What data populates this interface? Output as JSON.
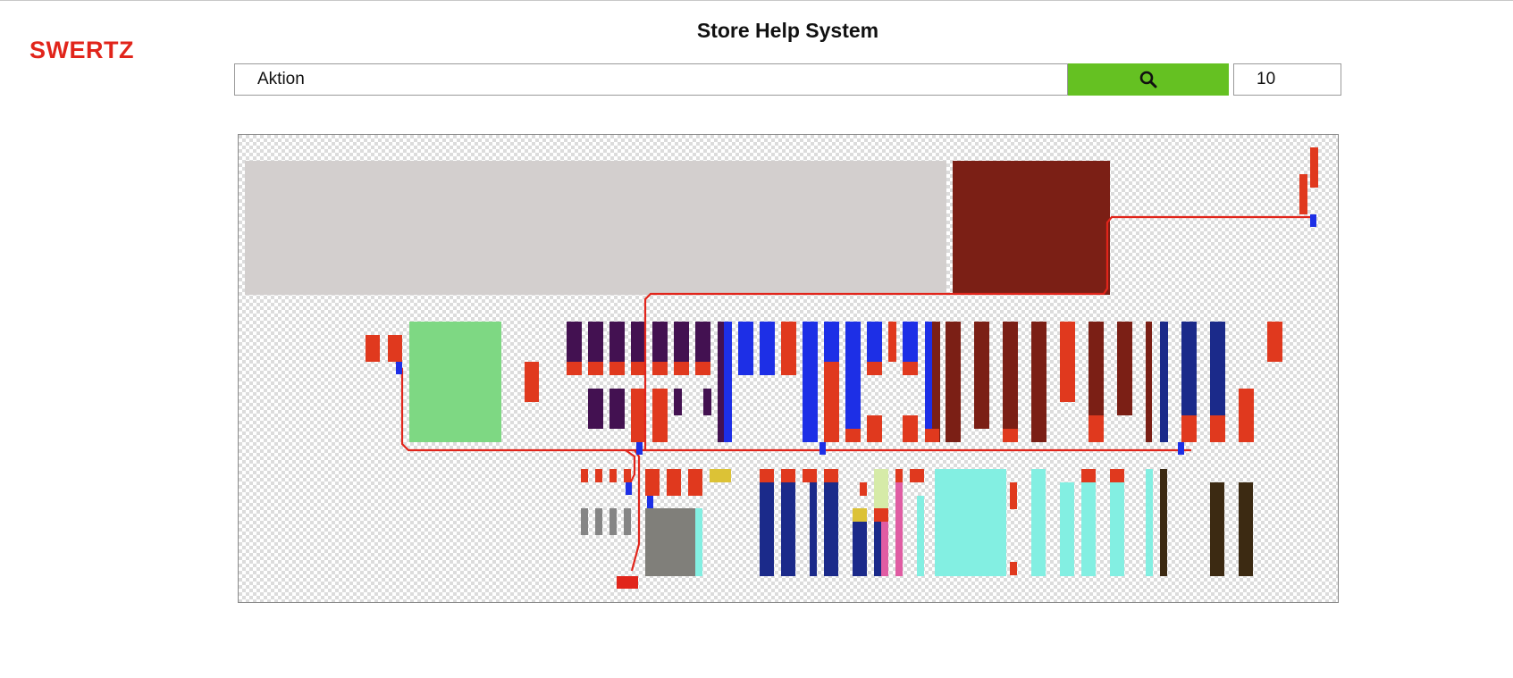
{
  "header": {
    "logo": "SWERTZ",
    "title": "Store Help System"
  },
  "search": {
    "query": "Aktion",
    "button_icon": "search-icon",
    "button_color": "#65c122",
    "result_count": "10"
  },
  "colors": {
    "logo": "#e1251b",
    "route": "#e1251b",
    "hit_marker": "#1d2fe6",
    "start_marker": "#e1251b"
  }
}
